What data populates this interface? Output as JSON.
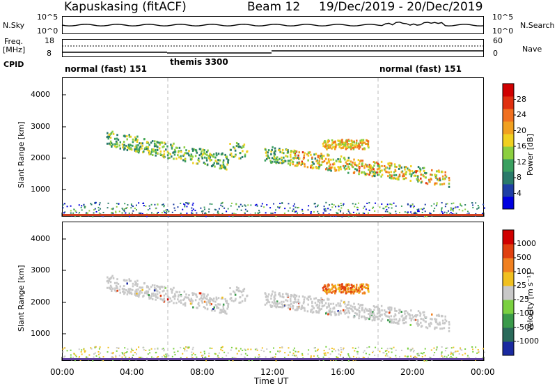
{
  "header": {
    "station": "Kapuskasing (fitACF)",
    "beam": "Beam 12",
    "date_range": "19/Dec/2019 - 20/Dec/2019"
  },
  "panels": {
    "nsky": {
      "label": "N.Sky",
      "ticks_left": [
        "10^5",
        "10^0"
      ],
      "ticks_right": [
        "10^5",
        "10^0"
      ],
      "right_label": "N.Search"
    },
    "freq": {
      "label_top": "Freq.",
      "label_unit": "[MHz]",
      "ticks_left": [
        "18",
        "8"
      ],
      "ticks_right": [
        "60",
        "0"
      ],
      "right_label": "Nave"
    },
    "cpid": {
      "label": "CPID",
      "segments": [
        "normal (fast) 151",
        "themis 3300",
        "normal (fast) 151"
      ]
    }
  },
  "chart_data": [
    {
      "type": "heatmap",
      "name": "power",
      "ylabel": "Slant Range [km]",
      "yticks": [
        "4000",
        "3000",
        "2000",
        "1000"
      ],
      "ylim": [
        180,
        4600
      ],
      "colorbar_label": "Power [dB]",
      "colorbar_ticks": [
        "28",
        "24",
        "20",
        "16",
        "12",
        "8",
        "4"
      ],
      "colors": [
        "#0000e0",
        "#1f3fa5",
        "#2a7a6a",
        "#3aa060",
        "#8ccf40",
        "#f0d020",
        "#f0a020",
        "#f07020",
        "#e03010",
        "#d00000"
      ]
    },
    {
      "type": "heatmap",
      "name": "velocity",
      "ylabel": "Slant Range [km]",
      "yticks": [
        "4000",
        "3000",
        "2000",
        "1000"
      ],
      "ylim": [
        180,
        4600
      ],
      "colorbar_label": "Velocity [m s⁻¹]",
      "colorbar_ticks": [
        "1000",
        "500",
        "100",
        "25",
        "-25",
        "-100",
        "-500",
        "-1000"
      ],
      "colors": [
        "#1a2aa0",
        "#2a6a5a",
        "#3a9a4a",
        "#7ad040",
        "#c8c8c8",
        "#f0c020",
        "#f08020",
        "#e04010",
        "#d00000"
      ]
    }
  ],
  "xaxis": {
    "label": "Time UT",
    "ticks": [
      "00:00",
      "04:00",
      "08:00",
      "12:00",
      "16:00",
      "20:00",
      "00:00"
    ]
  }
}
